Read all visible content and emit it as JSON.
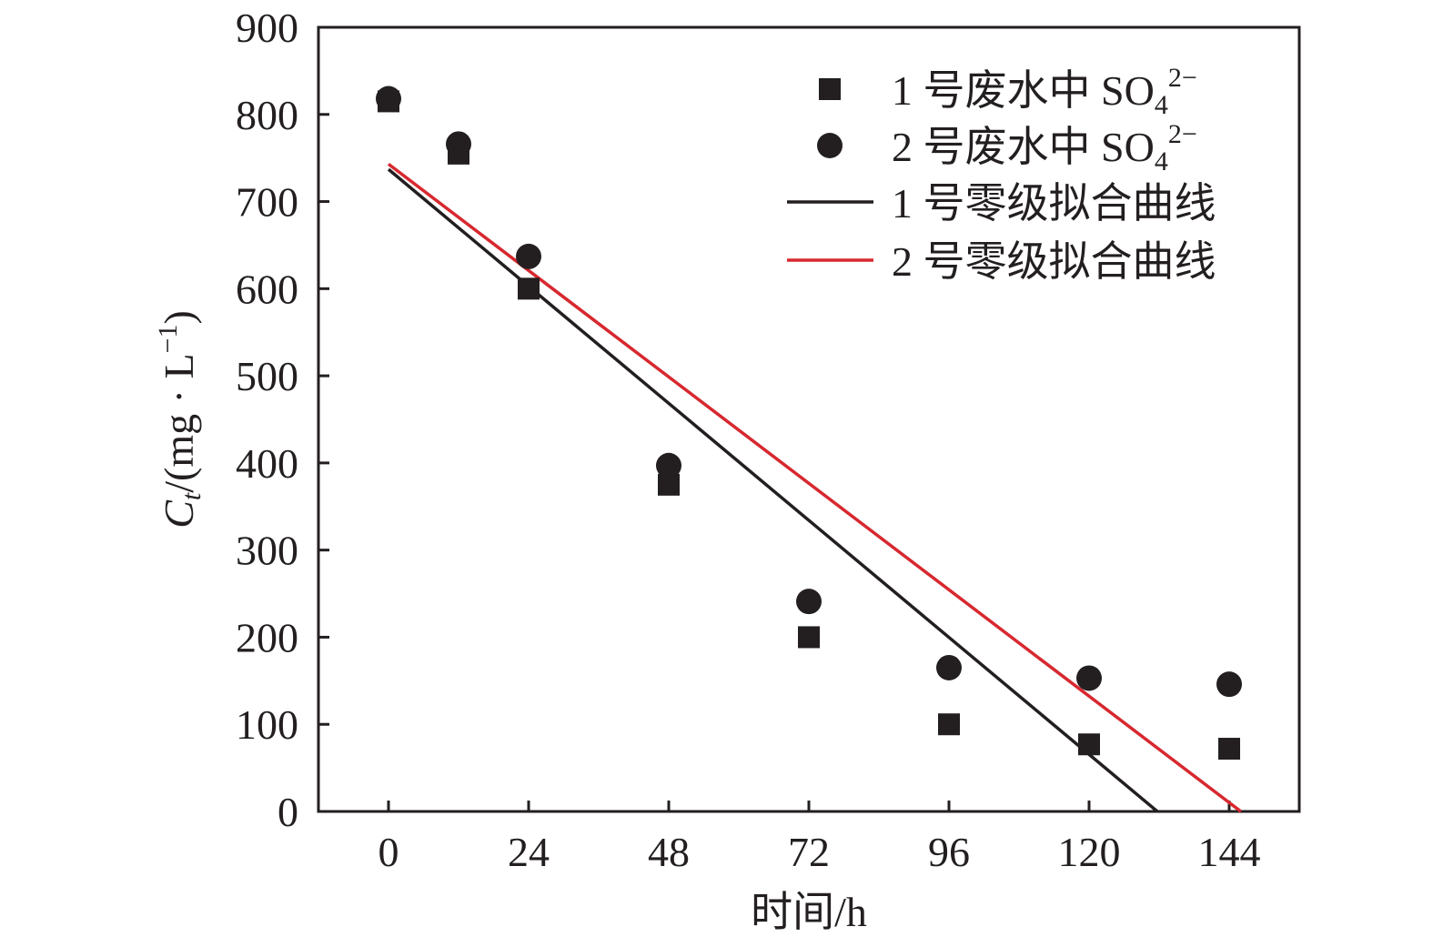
{
  "chart_data": {
    "type": "scatter",
    "xlabel": "时间/h",
    "ylabel": {
      "symbol": "C",
      "subscript": "t",
      "unit": "/(mg · L",
      "exponent": "−1",
      "close": ")"
    },
    "xlim": [
      -12,
      156
    ],
    "ylim": [
      0,
      900
    ],
    "xticks": [
      0,
      24,
      48,
      72,
      96,
      120,
      144
    ],
    "yticks": [
      0,
      100,
      200,
      300,
      400,
      500,
      600,
      700,
      800,
      900
    ],
    "grid": false,
    "legend_position": "top-right",
    "series": [
      {
        "name": "1 号废水中 SO42−",
        "label": {
          "main": "1 号废水中 SO",
          "sub": "4",
          "sup": "2−"
        },
        "kind": "scatter",
        "marker": "square",
        "color": "#231f20",
        "x": [
          0,
          12,
          24,
          48,
          72,
          96,
          120,
          144
        ],
        "y": [
          815,
          755,
          600,
          375,
          200,
          100,
          77,
          72
        ]
      },
      {
        "name": "2 号废水中 SO42−",
        "label": {
          "main": "2 号废水中 SO",
          "sub": "4",
          "sup": "2−"
        },
        "kind": "scatter",
        "marker": "circle",
        "color": "#231f20",
        "x": [
          0,
          12,
          24,
          48,
          72,
          96,
          120,
          144
        ],
        "y": [
          818,
          766,
          637,
          397,
          241,
          165,
          153,
          146
        ]
      },
      {
        "name": "1 号零级拟合曲线",
        "label": {
          "main": "1 号零级拟合曲线"
        },
        "kind": "line",
        "color": "#231f20",
        "x": [
          0,
          131.7
        ],
        "y": [
          737,
          0
        ]
      },
      {
        "name": "2 号零级拟合曲线",
        "label": {
          "main": "2 号零级拟合曲线"
        },
        "kind": "line",
        "color": "#d7282f",
        "x": [
          0,
          146
        ],
        "y": [
          743,
          0
        ]
      }
    ]
  }
}
